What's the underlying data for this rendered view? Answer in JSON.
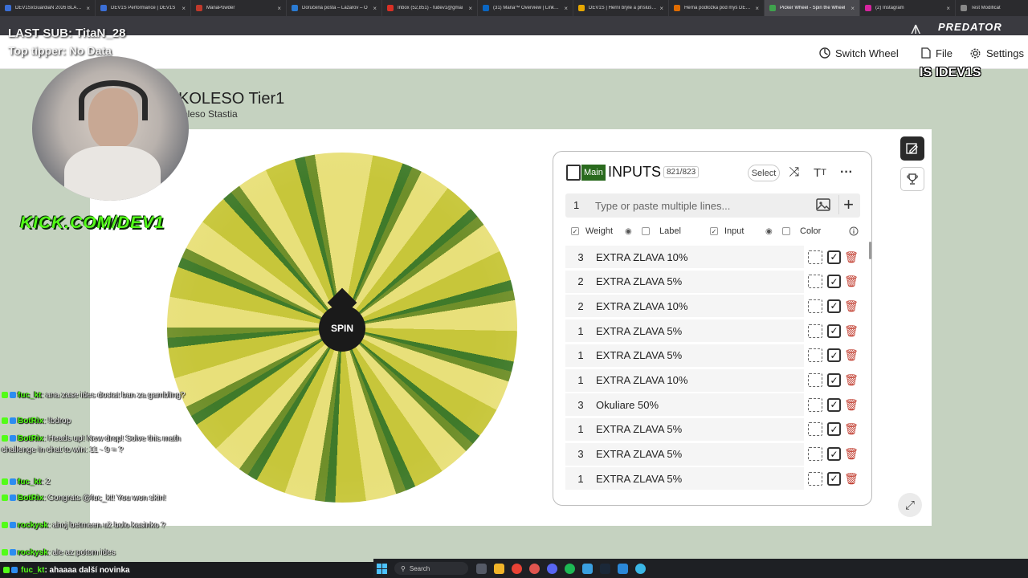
{
  "browser": {
    "tabs": [
      {
        "title": "DEV1SxGuardiaN 2026 BLACK",
        "color": "#3b6fd6",
        "active": false
      },
      {
        "title": "DEV1S Performance | DEV1S",
        "color": "#3b6fd6",
        "active": false
      },
      {
        "title": "ManaPowder",
        "color": "#c0392b",
        "active": false
      },
      {
        "title": "Doručená pošta – Lazarov – O",
        "color": "#2a7bd3",
        "active": false
      },
      {
        "title": "Inbox (52,851) - fudev1@gmai",
        "color": "#d93025",
        "active": false
      },
      {
        "title": "(31) Mana™ Overview | LinkedIn",
        "color": "#0a66c2",
        "active": false
      },
      {
        "title": "DEV1S | Herní brýle a příslušen",
        "color": "#e6a700",
        "active": false
      },
      {
        "title": "Herná podložka pod myš DEV1S",
        "color": "#e06c00",
        "active": false
      },
      {
        "title": "Picker Wheel - Spin the Wheel",
        "color": "#3fa34d",
        "active": true
      },
      {
        "title": "(2) Instagram",
        "color": "#d6249f",
        "active": false
      },
      {
        "title": "Test Modificat",
        "color": "#888888",
        "active": false
      }
    ]
  },
  "stream": {
    "last_sub": "LAST SUB: TitaN_28",
    "top_tipper": "Top tipper: No Data",
    "kick_logo": "KICK.COM/DEV1",
    "predator": "PREDATOR",
    "is_dev": "IS IDEV1S"
  },
  "header": {
    "switch_wheel": "Switch Wheel",
    "file": "File",
    "settings": "Settings"
  },
  "wheel": {
    "title": "KOLESO Tier1",
    "subtitle": "oleso Stastia",
    "spin_label": "SPIN",
    "colors": {
      "light": "#e8e07a",
      "mid": "#c7c63a",
      "dark": "#6f8f2a",
      "green": "#3f7a2a"
    }
  },
  "inputs_panel": {
    "badge": "Main",
    "title": "INPUTS",
    "count": "821/823",
    "select_label": "Select",
    "add_row_number": "1",
    "placeholder": "Type or paste multiple lines...",
    "columns": {
      "weight": "Weight",
      "label": "Label",
      "input": "Input",
      "color": "Color"
    },
    "rows": [
      {
        "weight": "3",
        "label": "EXTRA ZLAVA 10%"
      },
      {
        "weight": "2",
        "label": "EXTRA ZLAVA 5%"
      },
      {
        "weight": "2",
        "label": "EXTRA ZLAVA 10%"
      },
      {
        "weight": "1",
        "label": "EXTRA ZLAVA 5%"
      },
      {
        "weight": "1",
        "label": "EXTRA ZLAVA 5%"
      },
      {
        "weight": "1",
        "label": "EXTRA ZLAVA 10%"
      },
      {
        "weight": "3",
        "label": "Okuliare 50%"
      },
      {
        "weight": "1",
        "label": "EXTRA ZLAVA 5%"
      },
      {
        "weight": "3",
        "label": "EXTRA ZLAVA 5%"
      },
      {
        "weight": "1",
        "label": "EXTRA ZLAVA 5%"
      }
    ]
  },
  "chat": {
    "messages": [
      {
        "user": "fuc_kt",
        "text": ": ana zase ides dostat ban za gambling?",
        "user_color": "#53fc18"
      },
      {
        "user": "BotRix",
        "text": ": !bdrop",
        "user_color": "#53fc18"
      },
      {
        "user": "BotRix",
        "text": ": Heads up! New drop! Solve this math challenge in chat to win: 11 - 9 = ?",
        "user_color": "#53fc18"
      },
      {
        "user": "fuc_kt",
        "text": ": 2",
        "user_color": "#53fc18"
      },
      {
        "user": "BotRix",
        "text": ": Congrats @fuc_kt! You won skin!",
        "user_color": "#53fc18"
      },
      {
        "user": "rockysk",
        "text": ": ahoj betmeen už bolo kasinko ?",
        "user_color": "#53fc18"
      },
      {
        "user": "rockysk",
        "text": ": ale az potom ides",
        "user_color": "#53fc18"
      }
    ],
    "bottom_user": "fuc_kt",
    "bottom_text": ": ahaaaa další novinka"
  },
  "taskbar": {
    "search_label": "Search"
  }
}
